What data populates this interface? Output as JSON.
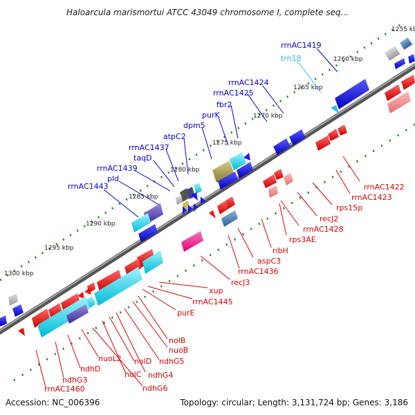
{
  "title": "Haloarcula marismortui ATCC 43049 chromosome I, complete seq...",
  "footer": {
    "accession": "Accession: NC_006396",
    "summary": "Topology: circular; Length: 3,131,724 bp; Genes: 3,186"
  },
  "colors": {
    "forward_label": "#0000cc",
    "reverse_label": "#dd0000",
    "rna_label": "#33bbee",
    "forward_feature": "#0000dd",
    "reverse_feature": "#ee1111",
    "backbone": "#7a7a7a",
    "tick": "#2a7a2a"
  },
  "kbp_ticks": [
    "1255 kbp",
    "1260 kbp",
    "1265 kbp",
    "1270 kbp",
    "1275 kbp",
    "1280 kbp",
    "1285 kbp",
    "1290 kbp",
    "1295 kbp",
    "1300 kbp"
  ],
  "forward_labels": [
    "rrnAC1419",
    "trn18",
    "rrnAC1424",
    "rrnAC1425",
    "fbr2",
    "purK",
    "dpm5",
    "atpC2",
    "rrnAC1437",
    "taqD",
    "rrnAC1439",
    "pld",
    "rrnAC1443"
  ],
  "reverse_labels": [
    "rrnAC1422",
    "rrnAC1423",
    "rps15p",
    "recJ2",
    "rrnAC1428",
    "rps3AE",
    "ribH",
    "aspC3",
    "rrnAC1436",
    "recJ3",
    "xup",
    "rrnAC1445",
    "purE",
    "nolB",
    "nuoB",
    "ndhG5",
    "ndhG4",
    "nolD",
    "nolC",
    "ndhG6",
    "nuoL2",
    "ndhD",
    "ndhG3",
    "rrnAC1460"
  ]
}
